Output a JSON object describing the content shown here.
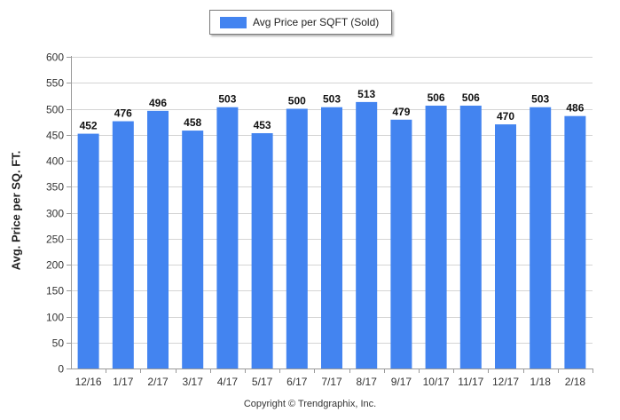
{
  "chart_data": {
    "type": "bar",
    "categories": [
      "12/16",
      "1/17",
      "2/17",
      "3/17",
      "4/17",
      "5/17",
      "6/17",
      "7/17",
      "8/17",
      "9/17",
      "10/17",
      "11/17",
      "12/17",
      "1/18",
      "2/18"
    ],
    "series": [
      {
        "name": "Avg Price per SQFT (Sold)",
        "values": [
          452,
          476,
          496,
          458,
          503,
          453,
          500,
          503,
          513,
          479,
          506,
          506,
          470,
          503,
          486
        ]
      }
    ],
    "title": "",
    "xlabel": "",
    "ylabel": "Avg. Price per SQ. FT.",
    "ylim": [
      0,
      600
    ],
    "yticks": [
      0,
      50,
      100,
      150,
      200,
      250,
      300,
      350,
      400,
      450,
      500,
      550,
      600
    ],
    "grid": true,
    "legend_position": "top-center",
    "bar_color": "#4384f0"
  },
  "footer": {
    "copyright": "Copyright © Trendgraphix, Inc."
  }
}
